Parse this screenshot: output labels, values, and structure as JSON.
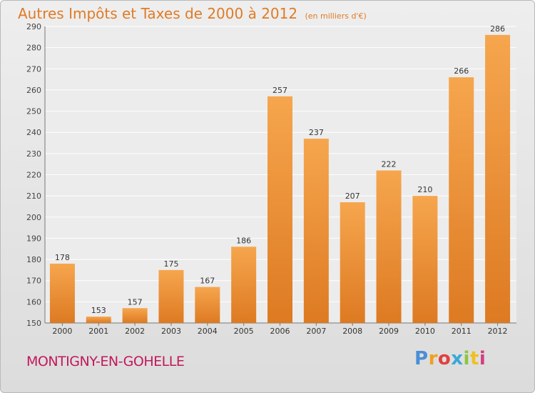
{
  "header": {
    "title": "Autres Impôts et Taxes de 2000 à 2012",
    "unit": "(en milliers d'€)"
  },
  "footer": {
    "commune": "MONTIGNY-EN-GOHELLE",
    "brand": "Proxiti",
    "brand_colors": [
      "#4a8fd6",
      "#f0a020",
      "#e04040",
      "#3aa8d8",
      "#8cc63f",
      "#f0c020",
      "#d04080"
    ]
  },
  "colors": {
    "title": "#e07b26",
    "commune": "#c2185b",
    "bar_light": "#f6a64e",
    "bar_dark": "#dd7a22"
  },
  "chart_data": {
    "type": "bar",
    "categories": [
      "2000",
      "2001",
      "2002",
      "2003",
      "2004",
      "2005",
      "2006",
      "2007",
      "2008",
      "2009",
      "2010",
      "2011",
      "2012"
    ],
    "values": [
      178,
      153,
      157,
      175,
      167,
      186,
      257,
      237,
      207,
      222,
      210,
      266,
      286
    ],
    "title": "Autres Impôts et Taxes de 2000 à 2012",
    "ylim": [
      150,
      290
    ],
    "yticks": [
      150,
      160,
      170,
      180,
      190,
      200,
      210,
      220,
      230,
      240,
      250,
      260,
      270,
      280,
      290
    ],
    "grid": true,
    "legend": "none"
  }
}
